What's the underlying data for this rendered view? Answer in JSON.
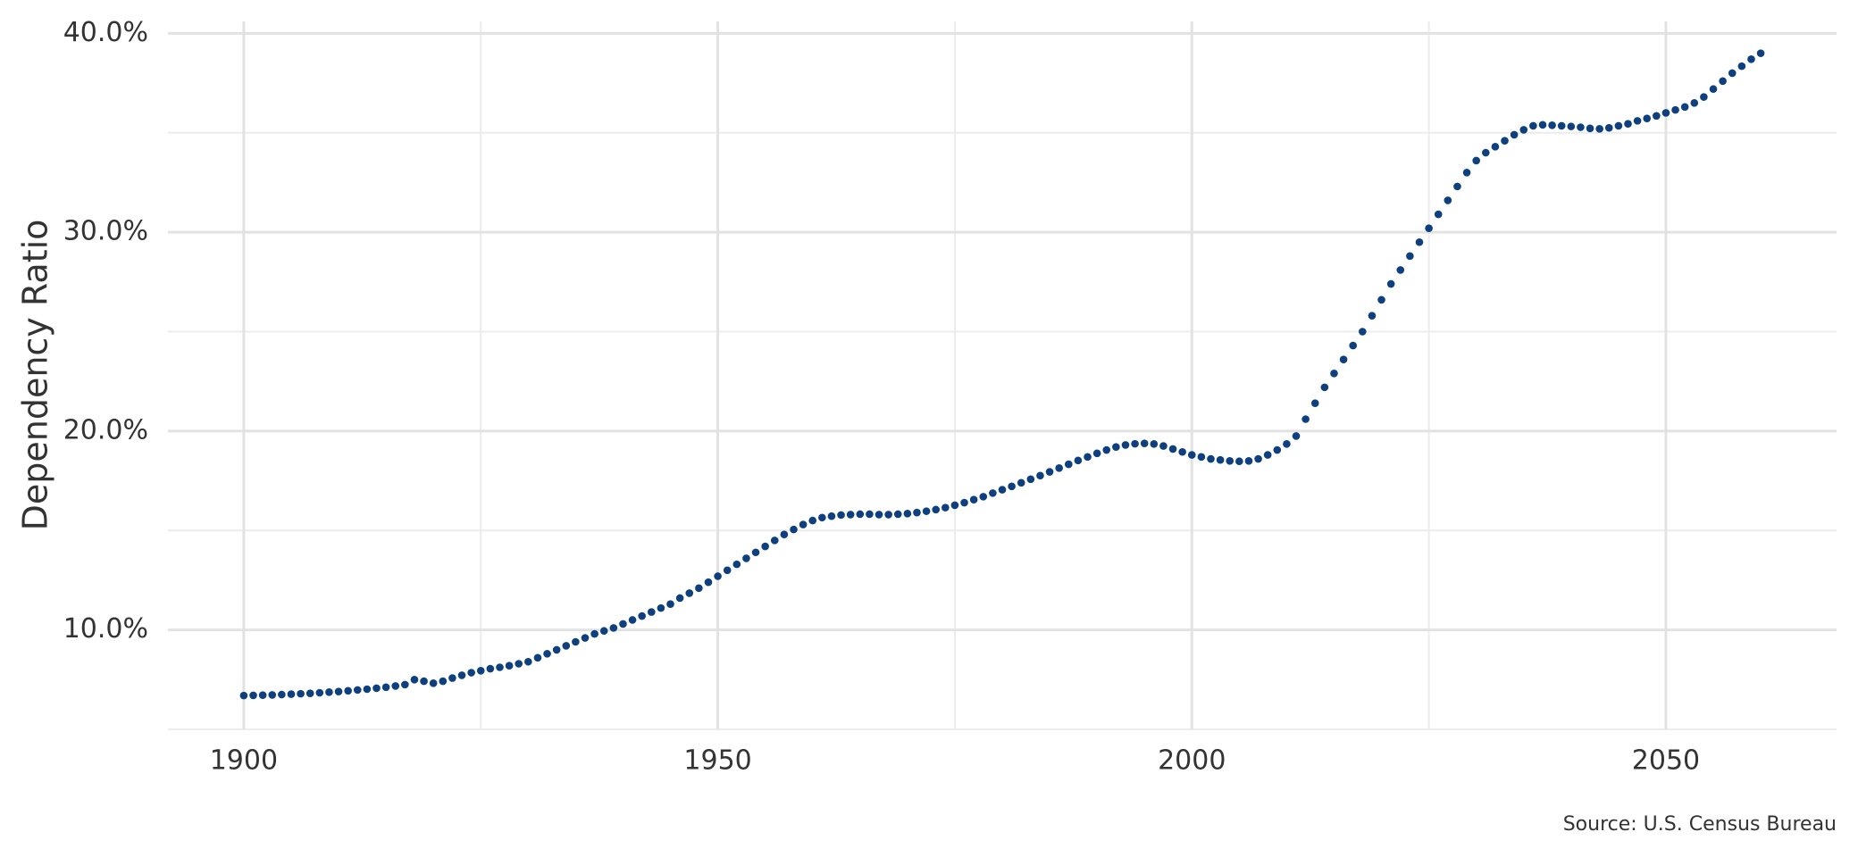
{
  "chart_data": {
    "type": "scatter",
    "y_label": "Dependency Ratio",
    "source": "Source: U.S. Census Bureau",
    "color": "#0e3f7e",
    "x": [
      1900,
      1901,
      1902,
      1903,
      1904,
      1905,
      1906,
      1907,
      1908,
      1909,
      1910,
      1911,
      1912,
      1913,
      1914,
      1915,
      1916,
      1917,
      1918,
      1919,
      1920,
      1921,
      1922,
      1923,
      1924,
      1925,
      1926,
      1927,
      1928,
      1929,
      1930,
      1931,
      1932,
      1933,
      1934,
      1935,
      1936,
      1937,
      1938,
      1939,
      1940,
      1941,
      1942,
      1943,
      1944,
      1945,
      1946,
      1947,
      1948,
      1949,
      1950,
      1951,
      1952,
      1953,
      1954,
      1955,
      1956,
      1957,
      1958,
      1959,
      1960,
      1961,
      1962,
      1963,
      1964,
      1965,
      1966,
      1967,
      1968,
      1969,
      1970,
      1971,
      1972,
      1973,
      1974,
      1975,
      1976,
      1977,
      1978,
      1979,
      1980,
      1981,
      1982,
      1983,
      1984,
      1985,
      1986,
      1987,
      1988,
      1989,
      1990,
      1991,
      1992,
      1993,
      1994,
      1995,
      1996,
      1997,
      1998,
      1999,
      2000,
      2001,
      2002,
      2003,
      2004,
      2005,
      2006,
      2007,
      2008,
      2009,
      2010,
      2011,
      2012,
      2013,
      2014,
      2015,
      2016,
      2017,
      2018,
      2019,
      2020,
      2021,
      2022,
      2023,
      2024,
      2025,
      2026,
      2027,
      2028,
      2029,
      2030,
      2031,
      2032,
      2033,
      2034,
      2035,
      2036,
      2037,
      2038,
      2039,
      2040,
      2041,
      2042,
      2043,
      2044,
      2045,
      2046,
      2047,
      2048,
      2049,
      2050,
      2051,
      2052,
      2053,
      2054,
      2055,
      2056,
      2057,
      2058,
      2059,
      2060
    ],
    "values": [
      6.7,
      6.71,
      6.72,
      6.73,
      6.75,
      6.77,
      6.79,
      6.81,
      6.84,
      6.87,
      6.9,
      6.94,
      6.98,
      7.02,
      7.07,
      7.12,
      7.18,
      7.25,
      7.5,
      7.42,
      7.32,
      7.42,
      7.58,
      7.72,
      7.85,
      7.95,
      8.05,
      8.12,
      8.2,
      8.3,
      8.4,
      8.6,
      8.8,
      9.0,
      9.2,
      9.4,
      9.6,
      9.8,
      9.95,
      10.1,
      10.3,
      10.5,
      10.7,
      10.9,
      11.1,
      11.3,
      11.6,
      11.85,
      12.1,
      12.4,
      12.7,
      13.0,
      13.3,
      13.6,
      13.9,
      14.2,
      14.5,
      14.8,
      15.05,
      15.3,
      15.5,
      15.65,
      15.72,
      15.78,
      15.8,
      15.82,
      15.82,
      15.8,
      15.8,
      15.82,
      15.85,
      15.9,
      15.97,
      16.05,
      16.15,
      16.27,
      16.4,
      16.55,
      16.7,
      16.88,
      17.05,
      17.22,
      17.4,
      17.58,
      17.76,
      17.95,
      18.14,
      18.33,
      18.52,
      18.7,
      18.88,
      19.05,
      19.2,
      19.3,
      19.36,
      19.38,
      19.35,
      19.25,
      19.1,
      18.95,
      18.8,
      18.7,
      18.6,
      18.55,
      18.5,
      18.48,
      18.5,
      18.6,
      18.8,
      19.05,
      19.35,
      19.75,
      20.6,
      21.4,
      22.2,
      22.9,
      23.6,
      24.3,
      25.0,
      25.8,
      26.6,
      27.4,
      28.1,
      28.8,
      29.5,
      30.2,
      30.9,
      31.6,
      32.3,
      33.0,
      33.6,
      34.0,
      34.3,
      34.6,
      34.9,
      35.15,
      35.35,
      35.4,
      35.38,
      35.35,
      35.32,
      35.28,
      35.22,
      35.2,
      35.25,
      35.35,
      35.45,
      35.6,
      35.72,
      35.85,
      36.0,
      36.15,
      36.3,
      36.5,
      36.8,
      37.2,
      37.6,
      38.0,
      38.35,
      38.7,
      39.0
    ],
    "xlim": [
      1892,
      2068
    ],
    "ylim": [
      5,
      40.6
    ],
    "xticks": [
      1900,
      1950,
      2000,
      2050
    ],
    "minor_xticks": [
      1925,
      1975,
      2025
    ],
    "yticks": [
      {
        "value": 10,
        "label": "10.0%"
      },
      {
        "value": 20,
        "label": "20.0%"
      },
      {
        "value": 30,
        "label": "30.0%"
      },
      {
        "value": 40,
        "label": "40.0%"
      }
    ],
    "minor_yticks": [
      5,
      15,
      25,
      35
    ],
    "grid": true
  }
}
